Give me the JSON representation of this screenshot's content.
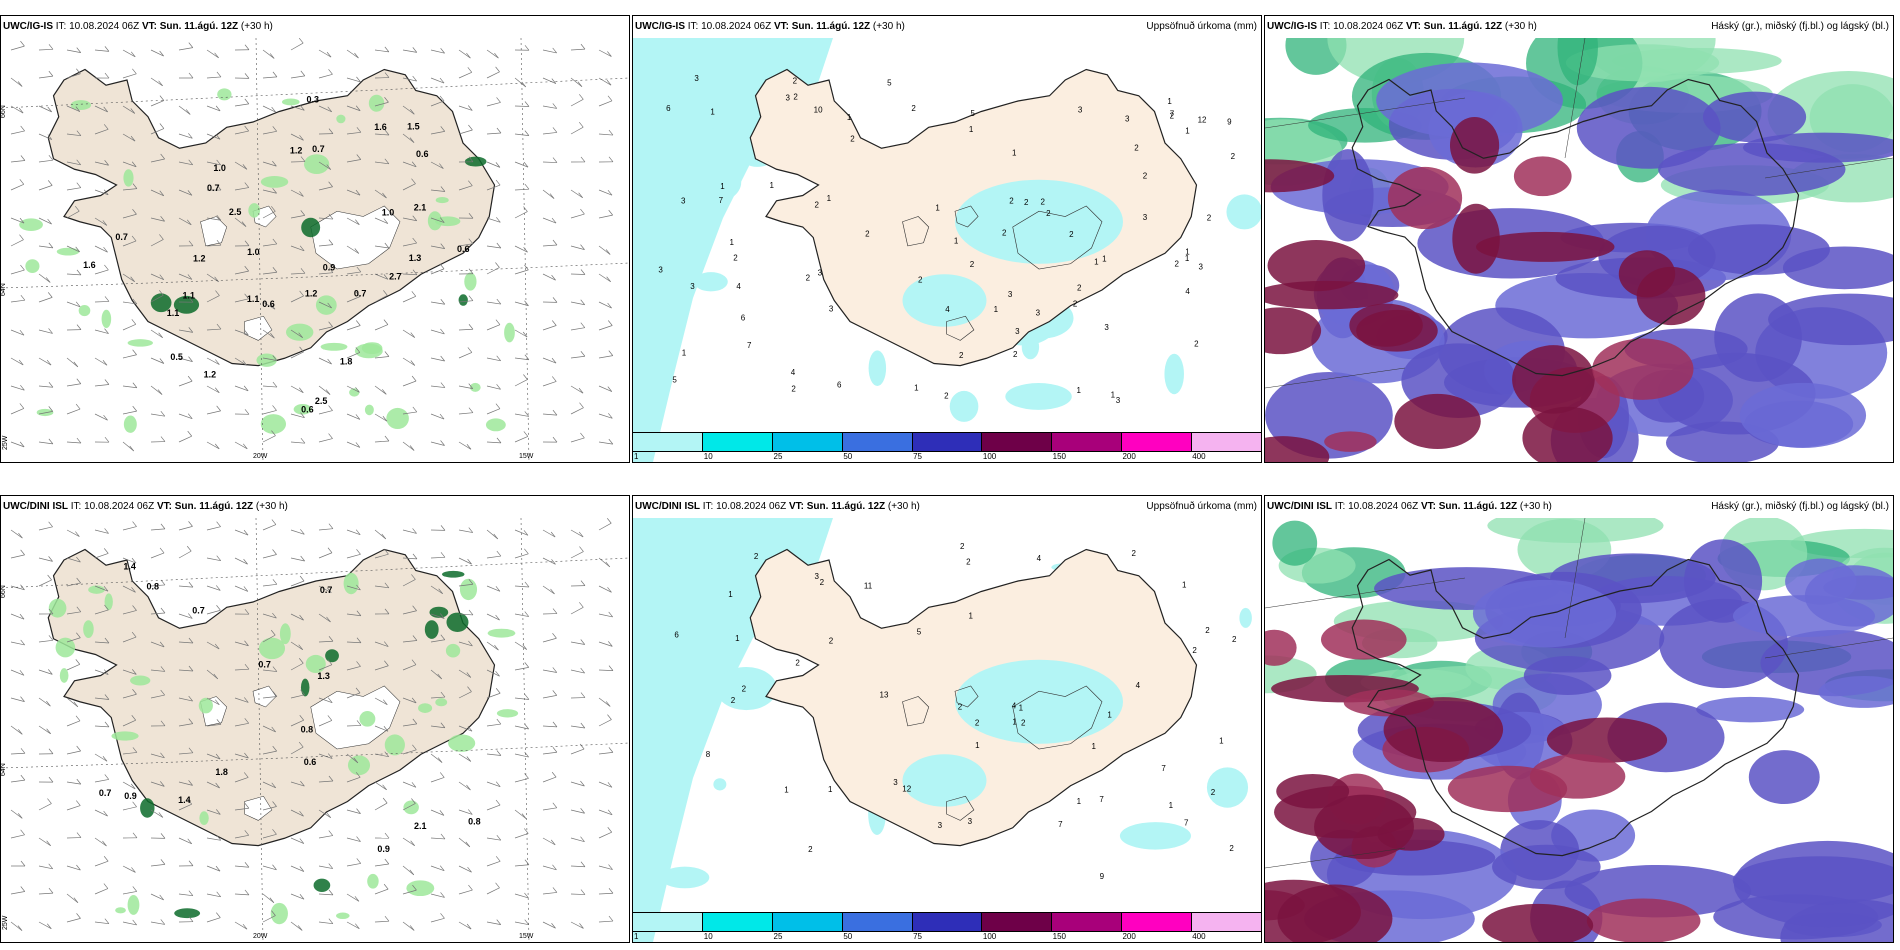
{
  "panels": [
    {
      "model": "UWC/IG-IS",
      "it_label": "IT:",
      "it": "10.08.2024 06Z",
      "vt_label": "VT:",
      "vt": "Sun. 11.ágú. 12Z",
      "lead": "(+30 h)",
      "right_title": "",
      "type": "wind"
    },
    {
      "model": "UWC/IG-IS",
      "it_label": "IT:",
      "it": "10.08.2024 06Z",
      "vt_label": "VT:",
      "vt": "Sun. 11.ágú. 12Z",
      "lead": "(+30 h)",
      "right_title": "Uppsöfnuð úrkoma (mm)",
      "type": "precip"
    },
    {
      "model": "UWC/IG-IS",
      "it_label": "IT:",
      "it": "10.08.2024 06Z",
      "vt_label": "VT:",
      "vt": "Sun. 11.ágú. 12Z",
      "lead": "(+30 h)",
      "right_title": "Háský (gr.), miðský (fj.bl.) og lágský (bl.)",
      "type": "clouds"
    },
    {
      "model": "UWC/DINI ISL",
      "it_label": "IT:",
      "it": "10.08.2024 06Z",
      "vt_label": "VT:",
      "vt": "Sun. 11.ágú. 12Z",
      "lead": "(+30 h)",
      "right_title": "",
      "type": "wind"
    },
    {
      "model": "UWC/DINI ISL",
      "it_label": "IT:",
      "it": "10.08.2024 06Z",
      "vt_label": "VT:",
      "vt": "Sun. 11.ágú. 12Z",
      "lead": "(+30 h)",
      "right_title": "Uppsöfnuð úrkoma (mm)",
      "type": "precip"
    },
    {
      "model": "UWC/DINI ISL",
      "it_label": "IT:",
      "it": "10.08.2024 06Z",
      "vt_label": "VT:",
      "vt": "Sun. 11.ágú. 12Z",
      "lead": "(+30 h)",
      "right_title": "Háský (gr.), miðský (fj.bl.) og lágský (bl.)",
      "type": "clouds"
    }
  ],
  "coords": {
    "lat66": "66N",
    "lat64": "64N",
    "lon25": "25W",
    "lon20": "20W",
    "lon15": "15W"
  },
  "colorbar": {
    "colors": [
      "#b3f5f5",
      "#00e8e8",
      "#00bfe8",
      "#3a6fe0",
      "#2e2eb8",
      "#6e0048",
      "#a8007a",
      "#ff00c0",
      "#f5b3f0"
    ],
    "labels": [
      "1",
      "10",
      "25",
      "50",
      "75",
      "100",
      "150",
      "200",
      "400"
    ]
  },
  "wind_values_top": [
    "1.0",
    "2.5",
    "1.5",
    "1.2",
    "1.6",
    "1.1",
    "0.7",
    "1.0",
    "2.7",
    "1.3",
    "1.8",
    "1.6",
    "2.5",
    "1.1",
    "0.6",
    "0.5",
    "0.6",
    "1.2",
    "0.7",
    "0.6",
    "0.3",
    "1.2",
    "1.1",
    "0.9",
    "2.1",
    "0.7",
    "1.0",
    "0.7",
    "0.6",
    "1.2"
  ],
  "wind_values_bottom": [
    "0.7",
    "0.8",
    "0.9",
    "1.3",
    "1.8",
    "1.4",
    "0.9",
    "0.7",
    "0.7",
    "0.8",
    "0.7",
    "0.6",
    "0.8",
    "2.1",
    "1.4"
  ],
  "precip_values_top": [
    "1",
    "7",
    "7",
    "4",
    "3",
    "2",
    "2",
    "2",
    "2",
    "1",
    "3",
    "1",
    "1",
    "2",
    "2",
    "2",
    "3",
    "2",
    "1",
    "1",
    "3",
    "2",
    "2",
    "3",
    "3",
    "2",
    "1",
    "2",
    "2",
    "3",
    "2",
    "6",
    "5",
    "10",
    "4",
    "3",
    "2",
    "1",
    "2",
    "4",
    "3",
    "12",
    "2",
    "3",
    "5",
    "4",
    "1",
    "6",
    "7",
    "3",
    "3",
    "1",
    "1",
    "9",
    "3",
    "2",
    "3",
    "2",
    "1",
    "1",
    "2",
    "2",
    "2",
    "2",
    "2",
    "1",
    "3",
    "1",
    "1",
    "3",
    "1",
    "2",
    "2",
    "6",
    "1",
    "2",
    "5",
    "2",
    "1",
    "2",
    "1",
    "1"
  ],
  "precip_values_bottom": [
    "3",
    "1",
    "2",
    "2",
    "2",
    "2",
    "2",
    "2",
    "1",
    "1",
    "1",
    "3",
    "2",
    "2",
    "2",
    "2",
    "1",
    "3",
    "2",
    "2",
    "3",
    "5",
    "4",
    "12",
    "13",
    "7",
    "7",
    "8",
    "7",
    "4",
    "1",
    "6",
    "2",
    "1",
    "9",
    "7",
    "2",
    "11",
    "4",
    "2",
    "2",
    "1",
    "2",
    "2",
    "1",
    "1",
    "1",
    "1",
    "1",
    "1"
  ]
}
